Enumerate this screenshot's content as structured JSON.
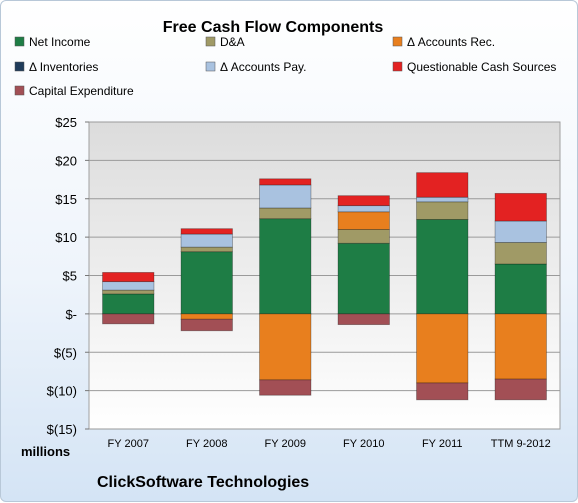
{
  "chart_data": {
    "type": "bar",
    "stacked": true,
    "title": "Free Cash Flow Components",
    "categories": [
      "FY 2007",
      "FY 2008",
      "FY 2009",
      "FY 2010",
      "FY 2011",
      "TTM 9-2012"
    ],
    "series": [
      {
        "name": "Net Income",
        "color": "#1e7d45",
        "values": [
          2.6,
          8.1,
          12.4,
          9.2,
          12.3,
          6.5
        ]
      },
      {
        "name": "D&A",
        "color": "#a09a66",
        "values": [
          0.5,
          0.6,
          1.4,
          1.8,
          2.3,
          2.8
        ]
      },
      {
        "name": "Δ Accounts Rec.",
        "color": "#e87f1e",
        "values": [
          0.0,
          -0.7,
          -8.6,
          2.3,
          -9.0,
          -8.5
        ]
      },
      {
        "name": "Δ Inventories",
        "color": "#1f3b5a",
        "values": [
          0,
          0,
          0,
          0,
          0,
          0
        ]
      },
      {
        "name": "Δ Accounts Pay.",
        "color": "#a9c2e0",
        "values": [
          1.1,
          1.7,
          3.0,
          0.8,
          0.6,
          2.8
        ]
      },
      {
        "name": "Questionable Cash Sources",
        "color": "#e32222",
        "values": [
          1.2,
          0.7,
          0.8,
          1.3,
          3.2,
          3.6
        ]
      },
      {
        "name": "Capital Expenditure",
        "color": "#a24f55",
        "values": [
          -1.3,
          -1.5,
          -2.0,
          -1.4,
          -2.2,
          -2.7
        ]
      }
    ],
    "y_ticks": [
      "$25",
      "$20",
      "$15",
      "$10",
      "$5",
      "$-",
      "$(5)",
      "$(10)",
      "$(15)"
    ],
    "ylim": [
      -15,
      25
    ],
    "ylabel": "millions",
    "legend": "top",
    "grid": true,
    "footer": "ClickSoftware Technologies"
  }
}
